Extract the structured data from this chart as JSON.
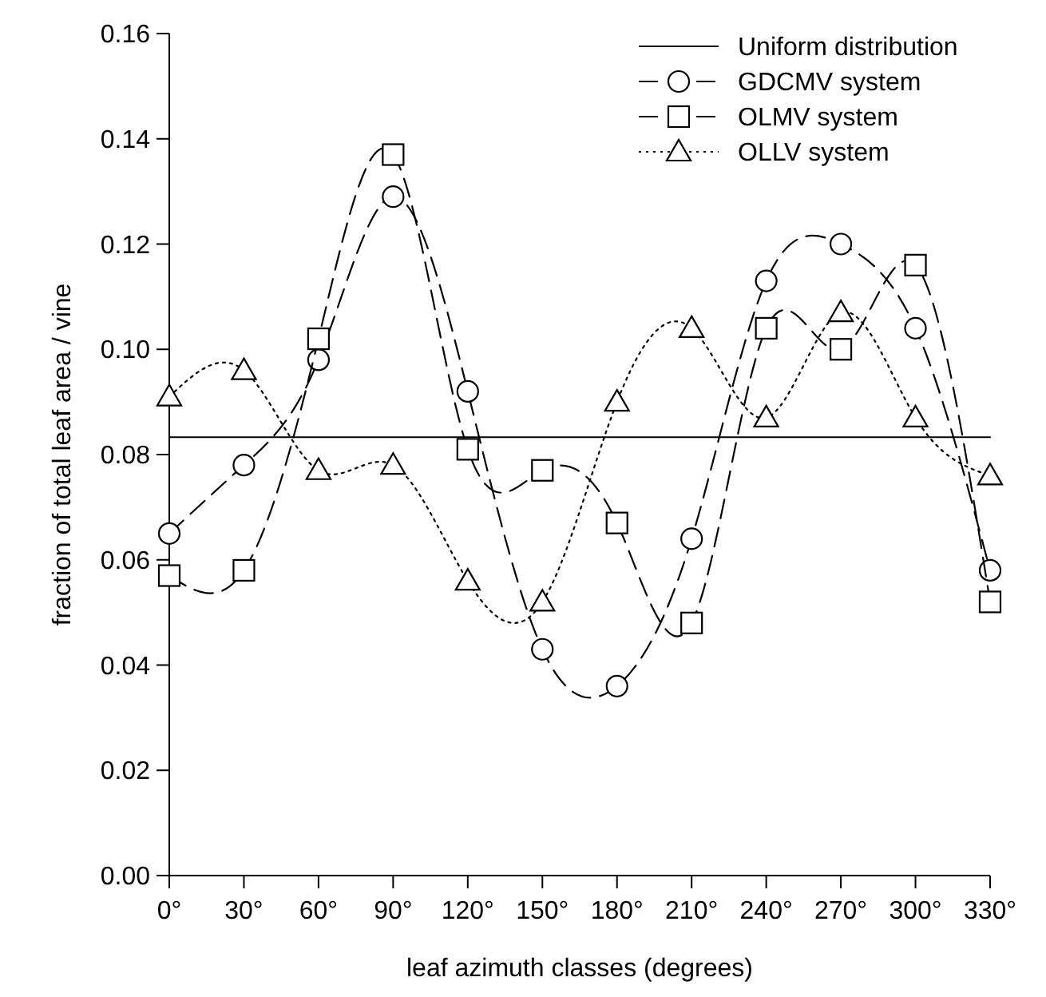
{
  "chart_data": {
    "type": "line",
    "xlabel": "leaf azimuth classes (degrees)",
    "ylabel": "fraction of total leaf area / vine",
    "x": [
      0,
      30,
      60,
      90,
      120,
      150,
      180,
      210,
      240,
      270,
      300,
      330
    ],
    "xlim": [
      0,
      330
    ],
    "xticks": [
      {
        "value": 0,
        "label": "0°"
      },
      {
        "value": 30,
        "label": "30°"
      },
      {
        "value": 60,
        "label": "60°"
      },
      {
        "value": 90,
        "label": "90°"
      },
      {
        "value": 120,
        "label": "120°"
      },
      {
        "value": 150,
        "label": "150°"
      },
      {
        "value": 180,
        "label": "180°"
      },
      {
        "value": 210,
        "label": "210°"
      },
      {
        "value": 240,
        "label": "240°"
      },
      {
        "value": 270,
        "label": "270°"
      },
      {
        "value": 300,
        "label": "300°"
      },
      {
        "value": 330,
        "label": "330°"
      }
    ],
    "ylim": [
      0,
      0.16
    ],
    "yticks": [
      {
        "value": 0,
        "label": "0.00"
      },
      {
        "value": 0.02,
        "label": "0.02"
      },
      {
        "value": 0.04,
        "label": "0.04"
      },
      {
        "value": 0.06,
        "label": "0.06"
      },
      {
        "value": 0.08,
        "label": "0.08"
      },
      {
        "value": 0.1,
        "label": "0.10"
      },
      {
        "value": 0.12,
        "label": "0.12"
      },
      {
        "value": 0.14,
        "label": "0.14"
      },
      {
        "value": 0.16,
        "label": "0.16"
      }
    ],
    "grid": false,
    "legend": "top right",
    "series": [
      {
        "name": "Uniform distribution",
        "color": "#000000",
        "x": [
          0,
          330
        ],
        "values": [
          0.0833,
          0.0833
        ],
        "marker": "none",
        "line_style": "solid"
      },
      {
        "name": "GDCMV system",
        "color": "#000000",
        "values": [
          0.065,
          0.078,
          0.098,
          0.129,
          0.092,
          0.043,
          0.036,
          0.064,
          0.113,
          0.12,
          0.104,
          0.058
        ],
        "marker": "circle",
        "line_style": "dashed"
      },
      {
        "name": "OLMV system",
        "color": "#000000",
        "values": [
          0.057,
          0.058,
          0.102,
          0.137,
          0.081,
          0.077,
          0.067,
          0.048,
          0.104,
          0.1,
          0.116,
          0.052
        ],
        "marker": "square",
        "line_style": "dashed"
      },
      {
        "name": "OLLV system",
        "color": "#000000",
        "values": [
          0.091,
          0.096,
          0.077,
          0.078,
          0.056,
          0.052,
          0.09,
          0.104,
          0.087,
          0.107,
          0.087,
          0.076
        ],
        "marker": "triangle",
        "line_style": "dotted"
      }
    ]
  }
}
